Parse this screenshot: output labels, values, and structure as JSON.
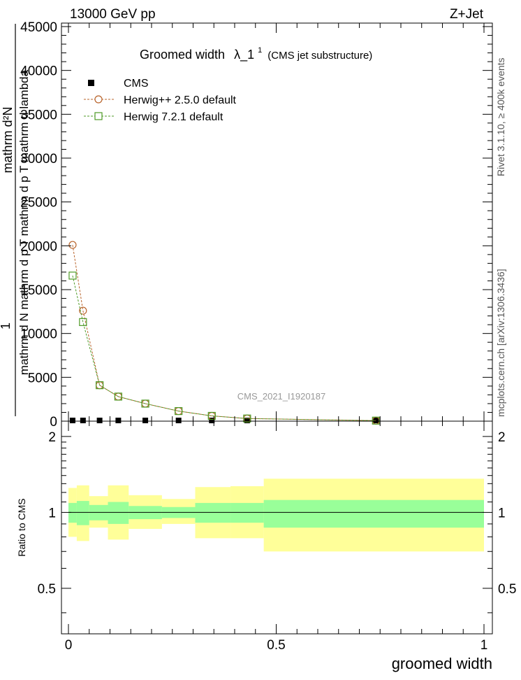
{
  "header": {
    "energy_label": "13000 GeV pp",
    "process_label": "Z+Jet",
    "right_margin_top": "Rivet 3.1.10, ≥ 400k events",
    "right_margin_bottom": "mcplots.cern.ch [arXiv:1306.3436]"
  },
  "chart_data": [
    {
      "type": "scatter",
      "title_main": "Groomed width",
      "title_symbol": "λ_1",
      "title_superscript": "1",
      "title_paren": "(CMS jet substructure)",
      "analysis_label": "CMS_2021_I1920187",
      "ylabel_numerator": "1",
      "ylabel_denominator": "mathrm d N mathrm d p T mathrm d p T mathrm d lambda",
      "ylabel_extra": "mathrm d²N",
      "xlim": [
        0,
        1
      ],
      "ylim": [
        0,
        45000
      ],
      "yticks": [
        0,
        5000,
        10000,
        15000,
        20000,
        25000,
        30000,
        35000,
        40000,
        45000
      ],
      "ytick_labels": [
        "0",
        "5000",
        "10000",
        "15000",
        "20000",
        "25000",
        "30000",
        "35000",
        "40000",
        "45000"
      ],
      "legend_position": "top-left",
      "series": [
        {
          "name": "CMS",
          "marker": "filled-square",
          "color": "#000000",
          "x": [
            0.01,
            0.035,
            0.075,
            0.12,
            0.185,
            0.265,
            0.345,
            0.43,
            0.74
          ],
          "y": [
            0,
            0,
            0,
            0,
            0,
            0,
            0,
            0,
            0
          ]
        },
        {
          "name": "Herwig++ 2.5.0 default",
          "marker": "open-circle",
          "color": "#b8632a",
          "x": [
            0.01,
            0.035,
            0.075,
            0.12,
            0.185,
            0.265,
            0.345,
            0.43,
            0.74
          ],
          "y": [
            20100,
            12600,
            4100,
            2800,
            2000,
            1150,
            600,
            300,
            60
          ]
        },
        {
          "name": "Herwig 7.2.1 default",
          "marker": "open-square",
          "color": "#4e9a26",
          "x": [
            0.01,
            0.035,
            0.075,
            0.12,
            0.185,
            0.265,
            0.345,
            0.43,
            0.74
          ],
          "y": [
            16600,
            11300,
            4100,
            2800,
            2000,
            1150,
            600,
            300,
            60
          ]
        }
      ]
    },
    {
      "type": "area",
      "ylabel": "Ratio to CMS",
      "xlabel": "groomed width",
      "xlim": [
        0,
        1
      ],
      "ylim": [
        0.33,
        2.3
      ],
      "yticks": [
        0.5,
        1,
        2
      ],
      "ytick_labels": [
        "0.5",
        "1",
        "2"
      ],
      "xticks": [
        0,
        0.5,
        1
      ],
      "xtick_labels": [
        "0",
        "0.5",
        "1"
      ],
      "band_colors": {
        "inner": "#99ff99",
        "outer": "#ffff99"
      },
      "bins": [
        {
          "lo": 0.0,
          "hi": 0.02,
          "inner": [
            0.91,
            1.09
          ],
          "outer": [
            0.8,
            1.25
          ]
        },
        {
          "lo": 0.02,
          "hi": 0.05,
          "inner": [
            0.89,
            1.11
          ],
          "outer": [
            0.77,
            1.28
          ]
        },
        {
          "lo": 0.05,
          "hi": 0.095,
          "inner": [
            0.93,
            1.07
          ],
          "outer": [
            0.87,
            1.16
          ]
        },
        {
          "lo": 0.095,
          "hi": 0.145,
          "inner": [
            0.9,
            1.1
          ],
          "outer": [
            0.78,
            1.28
          ]
        },
        {
          "lo": 0.145,
          "hi": 0.225,
          "inner": [
            0.94,
            1.06
          ],
          "outer": [
            0.86,
            1.17
          ]
        },
        {
          "lo": 0.225,
          "hi": 0.305,
          "inner": [
            0.95,
            1.05
          ],
          "outer": [
            0.9,
            1.13
          ]
        },
        {
          "lo": 0.305,
          "hi": 0.39,
          "inner": [
            0.91,
            1.09
          ],
          "outer": [
            0.79,
            1.26
          ]
        },
        {
          "lo": 0.39,
          "hi": 0.47,
          "inner": [
            0.91,
            1.09
          ],
          "outer": [
            0.79,
            1.27
          ]
        },
        {
          "lo": 0.47,
          "hi": 1.0,
          "inner": [
            0.87,
            1.12
          ],
          "outer": [
            0.7,
            1.36
          ]
        }
      ]
    }
  ]
}
